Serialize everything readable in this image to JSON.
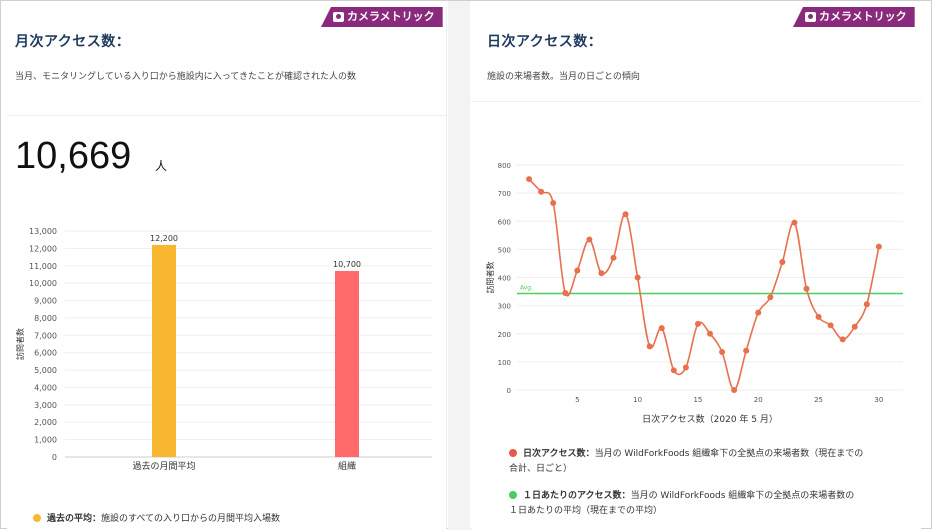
{
  "left": {
    "badge": "カメラメトリック",
    "title": "月次アクセス数：",
    "subtitle": "当月、モニタリングしている入り口から施設内に入ってきたことが確認された人の数",
    "total": "10,669",
    "unit": "人",
    "legend": {
      "name": "過去の平均：",
      "desc": "施設のすべての入り口からの月間平均入場数",
      "color": "#f7b731"
    }
  },
  "right": {
    "badge": "カメラメトリック",
    "title": "日次アクセス数：",
    "subtitle": "施設の来場者数。当月の日ごとの傾向",
    "legend": [
      {
        "name": "日次アクセス数：",
        "desc": "当月の WildForkFoods 組織傘下の全拠点の来場者数（現在までの",
        "desc2": "合計、日ごと）",
        "color": "#e8584f"
      },
      {
        "name": "１日あたりのアクセス数：",
        "desc": "当月の WildForkFoods 組織傘下の全拠点の来場者数の",
        "desc2": "１日あたりの平均（現在までの平均）",
        "color": "#4ccf5a"
      }
    ]
  },
  "chart_data": [
    {
      "type": "bar",
      "categories": [
        "過去の月間平均",
        "組織"
      ],
      "values": [
        12200,
        10700
      ],
      "value_labels": [
        "12,200",
        "10,700"
      ],
      "colors": [
        "#f7b731",
        "#ff6b6b"
      ],
      "ylabel": "訪問者数",
      "ylim": [
        0,
        13000
      ],
      "yticks": [
        "0",
        "1,000",
        "2,000",
        "3,000",
        "4,000",
        "5,000",
        "6,000",
        "7,000",
        "8,000",
        "9,000",
        "10,000",
        "11,000",
        "12,000",
        "13,000"
      ],
      "grid": true
    },
    {
      "type": "line",
      "x": [
        1,
        2,
        3,
        4,
        5,
        6,
        7,
        8,
        9,
        10,
        11,
        12,
        13,
        14,
        15,
        16,
        17,
        18,
        19,
        20,
        21,
        22,
        23,
        24,
        25,
        26,
        27,
        28,
        29,
        30
      ],
      "values": [
        750,
        705,
        665,
        345,
        425,
        535,
        415,
        470,
        625,
        400,
        155,
        220,
        70,
        80,
        235,
        200,
        135,
        0,
        140,
        275,
        330,
        455,
        595,
        360,
        260,
        230,
        180,
        225,
        305,
        510
      ],
      "avg": 343,
      "avg_label": "Avg.",
      "color": "#e8704f",
      "avg_color": "#4ccf5a",
      "xlabel": "日次アクセス数（2020 年 5 月）",
      "ylabel": "訪問者数",
      "xlim": [
        0,
        32
      ],
      "ylim": [
        0,
        800
      ],
      "xticks": [
        5,
        10,
        15,
        20,
        25,
        30
      ],
      "yticks": [
        0,
        100,
        200,
        300,
        400,
        500,
        600,
        700,
        800
      ],
      "grid": true
    }
  ]
}
